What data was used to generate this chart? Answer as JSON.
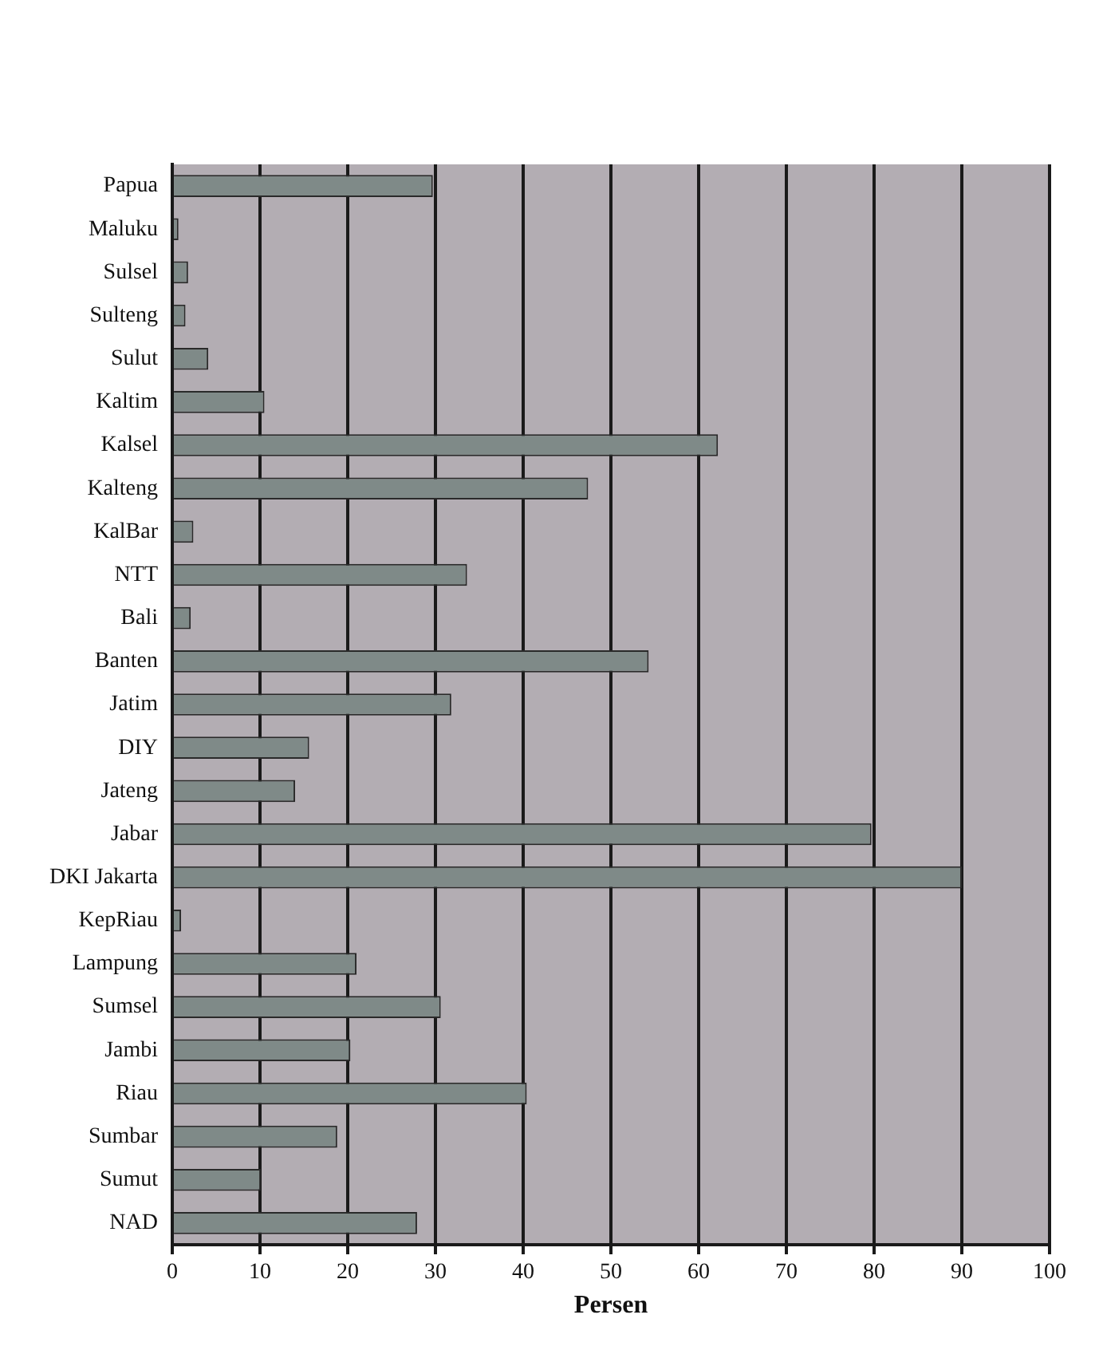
{
  "chart_data": {
    "type": "bar",
    "orientation": "horizontal",
    "xlabel": "Persen",
    "categories": [
      "Papua",
      "Maluku",
      "Sulsel",
      "Sulteng",
      "Sulut",
      "Kaltim",
      "Kalsel",
      "Kalteng",
      "KalBar",
      "NTT",
      "Bali",
      "Banten",
      "Jatim",
      "DIY",
      "Jateng",
      "Jabar",
      "DKI Jakarta",
      "KepRiau",
      "Lampung",
      "Sumsel",
      "Jambi",
      "Riau",
      "Sumbar",
      "Sumut",
      "NAD"
    ],
    "values": [
      29.7,
      0.7,
      1.8,
      1.5,
      4.1,
      10.5,
      62.2,
      47.4,
      2.4,
      33.6,
      2.1,
      54.3,
      31.8,
      15.6,
      14,
      79.7,
      90,
      1,
      21,
      30.6,
      20.3,
      40.4,
      18.8,
      10.1,
      27.9
    ],
    "color": "#7f8a88",
    "xlim": [
      0,
      100
    ],
    "xticks": [
      0,
      10,
      20,
      30,
      40,
      50,
      60,
      70,
      80,
      90,
      100
    ],
    "grid": "x",
    "legend": false
  }
}
